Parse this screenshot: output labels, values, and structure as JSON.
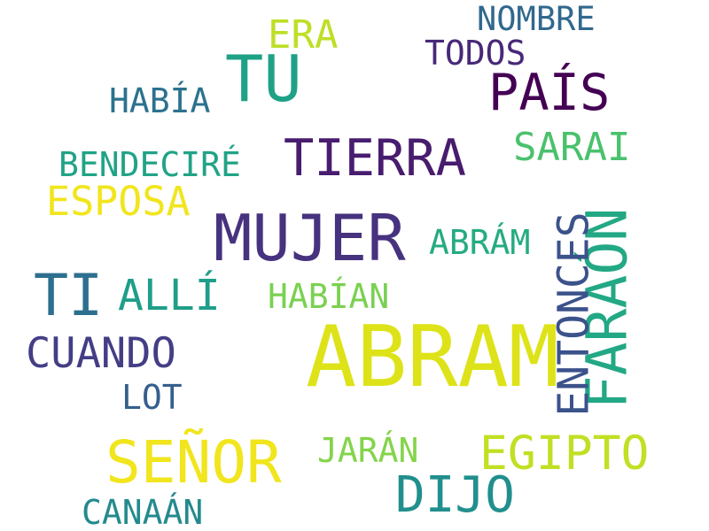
{
  "words": [
    {
      "text": "ABRAM",
      "color": "#dde318"
    },
    {
      "text": "MUJER",
      "color": "#46327e"
    },
    {
      "text": "TU",
      "color": "#1fa187"
    },
    {
      "text": "TIERRA",
      "color": "#481c6e"
    },
    {
      "text": "PAÍS",
      "color": "#440154"
    },
    {
      "text": "FARAÓN",
      "color": "#22a884"
    },
    {
      "text": "SEÑOR",
      "color": "#f1e51d"
    },
    {
      "text": "ENTONCES",
      "color": "#3b528b"
    },
    {
      "text": "TI",
      "color": "#2d6f8e"
    },
    {
      "text": "DIJO",
      "color": "#218f8d"
    },
    {
      "text": "EGIPTO",
      "color": "#c2df23"
    },
    {
      "text": "CUANDO",
      "color": "#433e85"
    },
    {
      "text": "ESPOSA",
      "color": "#f1e51d"
    },
    {
      "text": "ALLÍ",
      "color": "#1f9e89"
    },
    {
      "text": "SARAI",
      "color": "#4ac16d"
    },
    {
      "text": "ERA",
      "color": "#bddf26"
    },
    {
      "text": "BENDECIRÉ",
      "color": "#20a386"
    },
    {
      "text": "ABRÁM",
      "color": "#25ab82"
    },
    {
      "text": "HABÍAN",
      "color": "#7ad151"
    },
    {
      "text": "NOMBRE",
      "color": "#31688e"
    },
    {
      "text": "TODOS",
      "color": "#482878"
    },
    {
      "text": "HABÍA",
      "color": "#2c728e"
    },
    {
      "text": "JARÁN",
      "color": "#84d44b"
    },
    {
      "text": "CANAÁN",
      "color": "#238a8d"
    },
    {
      "text": "LOT",
      "color": "#355f8d"
    }
  ]
}
